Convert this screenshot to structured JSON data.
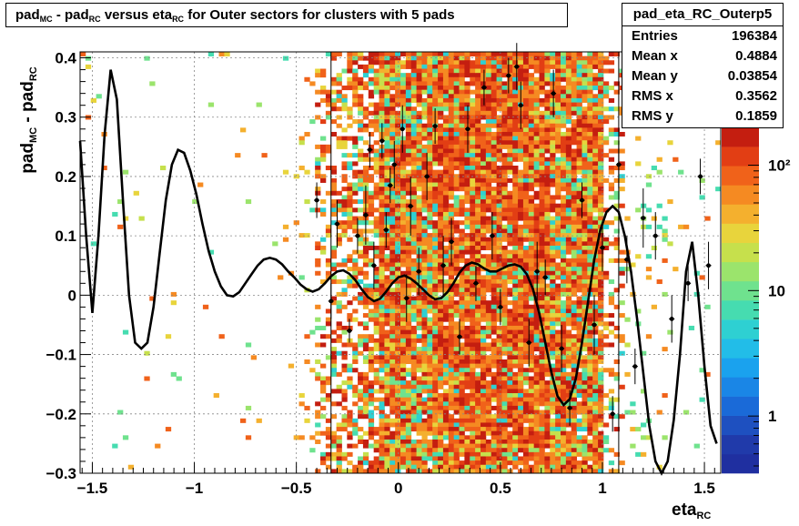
{
  "title_parts": {
    "p1": "pad",
    "s1": "MC",
    "p2": " - pad",
    "s2": "RC",
    "p3": " versus eta",
    "s3": "RC",
    "p4": " for Outer sectors for clusters with 5 pads"
  },
  "stats": {
    "name": "pad_eta_RC_Outerp5",
    "rows": [
      {
        "label": "Entries",
        "value": "196384"
      },
      {
        "label": "Mean x",
        "value": "0.4884"
      },
      {
        "label": "Mean y",
        "value": "0.03854"
      },
      {
        "label": "RMS x",
        "value": "0.3562"
      },
      {
        "label": "RMS y",
        "value": "0.1859"
      }
    ]
  },
  "ylabel_parts": {
    "p1": "pad",
    "s1": "MC",
    "p2": " - pad",
    "s2": "RC"
  },
  "xlabel_parts": {
    "p1": "eta",
    "s1": "RC"
  },
  "colors": {
    "palette": [
      "#1f2fa0",
      "#203aaa",
      "#1e50c0",
      "#1a6ad8",
      "#1a86e6",
      "#1aa2ee",
      "#22bde8",
      "#2ed0d2",
      "#46dcb0",
      "#6fe28e",
      "#9be46c",
      "#c6e04c",
      "#e8d43c",
      "#f4b02e",
      "#f58a22",
      "#f0621a",
      "#e23e14",
      "#c41e10"
    ],
    "curve": "#000000",
    "markers": "#000000"
  },
  "chart_data": {
    "type": "heatmap",
    "title": "pad_MC - pad_RC versus eta_RC for Outer sectors for clusters with 5 pads",
    "xlabel": "eta_RC",
    "ylabel": "pad_MC - pad_RC",
    "xlim": [
      -1.56,
      1.58
    ],
    "ylim": [
      -0.3,
      0.41
    ],
    "x_ticks": [
      "−1.5",
      "−1",
      "−0.5",
      "0",
      "0.5",
      "1",
      "1.5"
    ],
    "x_tick_values": [
      -1.5,
      -1,
      -0.5,
      0,
      0.5,
      1,
      1.5
    ],
    "y_ticks": [
      "−0.3",
      "−0.2",
      "−0.1",
      "0",
      "0.1",
      "0.2",
      "0.3",
      "0.4"
    ],
    "y_tick_values": [
      -0.3,
      -0.2,
      -0.1,
      0,
      0.1,
      0.2,
      0.3,
      0.4
    ],
    "z_scale": "log",
    "z_ticks": [
      "1",
      "10",
      "10²"
    ],
    "z_tick_values": [
      1,
      10,
      100
    ],
    "grid": true,
    "vertical_lines_x": [
      -0.33,
      1.08
    ],
    "fit_curve": {
      "x": [
        -1.56,
        -1.53,
        -1.5,
        -1.47,
        -1.44,
        -1.41,
        -1.38,
        -1.35,
        -1.32,
        -1.29,
        -1.26,
        -1.23,
        -1.2,
        -1.17,
        -1.14,
        -1.11,
        -1.08,
        -1.05,
        -1.02,
        -0.99,
        -0.96,
        -0.93,
        -0.9,
        -0.87,
        -0.84,
        -0.81,
        -0.78,
        -0.75,
        -0.72,
        -0.69,
        -0.66,
        -0.63,
        -0.6,
        -0.57,
        -0.54,
        -0.51,
        -0.48,
        -0.45,
        -0.42,
        -0.39,
        -0.36,
        -0.33,
        -0.3,
        -0.27,
        -0.24,
        -0.21,
        -0.18,
        -0.15,
        -0.12,
        -0.09,
        -0.06,
        -0.03,
        0,
        0.03,
        0.06,
        0.09,
        0.12,
        0.15,
        0.18,
        0.21,
        0.24,
        0.27,
        0.3,
        0.33,
        0.36,
        0.39,
        0.42,
        0.45,
        0.48,
        0.51,
        0.54,
        0.57,
        0.6,
        0.63,
        0.66,
        0.69,
        0.72,
        0.75,
        0.78,
        0.81,
        0.84,
        0.87,
        0.9,
        0.93,
        0.96,
        0.99,
        1.02,
        1.05,
        1.08,
        1.11,
        1.14,
        1.17,
        1.2,
        1.23,
        1.26,
        1.29,
        1.32,
        1.35,
        1.38,
        1.41,
        1.44,
        1.47,
        1.5,
        1.53,
        1.56
      ],
      "y": [
        0.26,
        0.1,
        -0.03,
        0.1,
        0.27,
        0.38,
        0.33,
        0.16,
        0.0,
        -0.08,
        -0.09,
        -0.08,
        -0.02,
        0.07,
        0.16,
        0.22,
        0.245,
        0.24,
        0.21,
        0.17,
        0.12,
        0.075,
        0.04,
        0.015,
        0.0,
        -0.002,
        0.005,
        0.02,
        0.035,
        0.05,
        0.06,
        0.063,
        0.06,
        0.052,
        0.04,
        0.03,
        0.018,
        0.01,
        0.006,
        0.01,
        0.02,
        0.032,
        0.04,
        0.042,
        0.036,
        0.025,
        0.01,
        -0.003,
        -0.01,
        -0.006,
        0.006,
        0.02,
        0.03,
        0.033,
        0.028,
        0.02,
        0.01,
        0.0,
        -0.007,
        -0.005,
        0.005,
        0.02,
        0.038,
        0.05,
        0.055,
        0.052,
        0.045,
        0.04,
        0.04,
        0.045,
        0.05,
        0.052,
        0.048,
        0.035,
        0.01,
        -0.03,
        -0.08,
        -0.13,
        -0.17,
        -0.185,
        -0.175,
        -0.14,
        -0.08,
        -0.01,
        0.06,
        0.11,
        0.14,
        0.15,
        0.14,
        0.1,
        0.04,
        -0.04,
        -0.13,
        -0.22,
        -0.28,
        -0.3,
        -0.28,
        -0.21,
        -0.1,
        0.04,
        0.09,
        0.0,
        -0.12,
        -0.22,
        -0.25
      ]
    },
    "profile_points": [
      {
        "x": -0.4,
        "y": 0.16,
        "err": 0.03
      },
      {
        "x": -0.33,
        "y": -0.01,
        "err": 0.03
      },
      {
        "x": -0.3,
        "y": 0.12,
        "err": 0.04
      },
      {
        "x": -0.24,
        "y": -0.06,
        "err": 0.02
      },
      {
        "x": -0.2,
        "y": 0.1,
        "err": 0.03
      },
      {
        "x": -0.16,
        "y": 0.135,
        "err": 0.05
      },
      {
        "x": -0.14,
        "y": 0.245,
        "err": 0.03
      },
      {
        "x": -0.12,
        "y": 0.05,
        "err": 0.04
      },
      {
        "x": -0.08,
        "y": 0.26,
        "err": 0.03
      },
      {
        "x": -0.06,
        "y": 0.11,
        "err": 0.03
      },
      {
        "x": -0.04,
        "y": 0.185,
        "err": 0.03
      },
      {
        "x": -0.02,
        "y": 0.22,
        "err": 0.04
      },
      {
        "x": 0.02,
        "y": 0.28,
        "err": 0.04
      },
      {
        "x": 0.04,
        "y": -0.005,
        "err": 0.04
      },
      {
        "x": 0.06,
        "y": 0.15,
        "err": 0.05
      },
      {
        "x": 0.1,
        "y": 0.04,
        "err": 0.04
      },
      {
        "x": 0.14,
        "y": 0.2,
        "err": 0.04
      },
      {
        "x": 0.18,
        "y": 0.285,
        "err": 0.03
      },
      {
        "x": 0.22,
        "y": 0.05,
        "err": 0.05
      },
      {
        "x": 0.26,
        "y": 0.09,
        "err": 0.04
      },
      {
        "x": 0.3,
        "y": -0.07,
        "err": 0.03
      },
      {
        "x": 0.34,
        "y": 0.28,
        "err": 0.04
      },
      {
        "x": 0.38,
        "y": 0.02,
        "err": 0.03
      },
      {
        "x": 0.42,
        "y": 0.35,
        "err": 0.03
      },
      {
        "x": 0.46,
        "y": 0.1,
        "err": 0.04
      },
      {
        "x": 0.5,
        "y": -0.02,
        "err": 0.03
      },
      {
        "x": 0.54,
        "y": 0.37,
        "err": 0.03
      },
      {
        "x": 0.58,
        "y": 0.385,
        "err": 0.04
      },
      {
        "x": 0.6,
        "y": 0.32,
        "err": 0.04
      },
      {
        "x": 0.64,
        "y": -0.08,
        "err": 0.04
      },
      {
        "x": 0.68,
        "y": 0.04,
        "err": 0.05
      },
      {
        "x": 0.72,
        "y": 0.03,
        "err": 0.03
      },
      {
        "x": 0.76,
        "y": 0.34,
        "err": 0.04
      },
      {
        "x": 0.8,
        "y": -0.09,
        "err": 0.04
      },
      {
        "x": 0.84,
        "y": -0.19,
        "err": 0.03
      },
      {
        "x": 0.9,
        "y": 0.16,
        "err": 0.03
      },
      {
        "x": 0.96,
        "y": -0.05,
        "err": 0.05
      },
      {
        "x": 1.0,
        "y": 0.08,
        "err": 0.04
      },
      {
        "x": 1.05,
        "y": -0.2,
        "err": 0.03
      },
      {
        "x": 1.08,
        "y": 0.22,
        "err": 0.04
      },
      {
        "x": 1.12,
        "y": 0.06,
        "err": 0.04
      },
      {
        "x": 1.16,
        "y": -0.12,
        "err": 0.03
      },
      {
        "x": 1.2,
        "y": 0.13,
        "err": 0.05
      },
      {
        "x": 1.26,
        "y": 0.1,
        "err": 0.04
      },
      {
        "x": 1.34,
        "y": -0.04,
        "err": 0.04
      },
      {
        "x": 1.42,
        "y": 0.02,
        "err": 0.03
      },
      {
        "x": 1.48,
        "y": 0.2,
        "err": 0.03
      },
      {
        "x": 1.52,
        "y": 0.05,
        "err": 0.04
      }
    ]
  }
}
